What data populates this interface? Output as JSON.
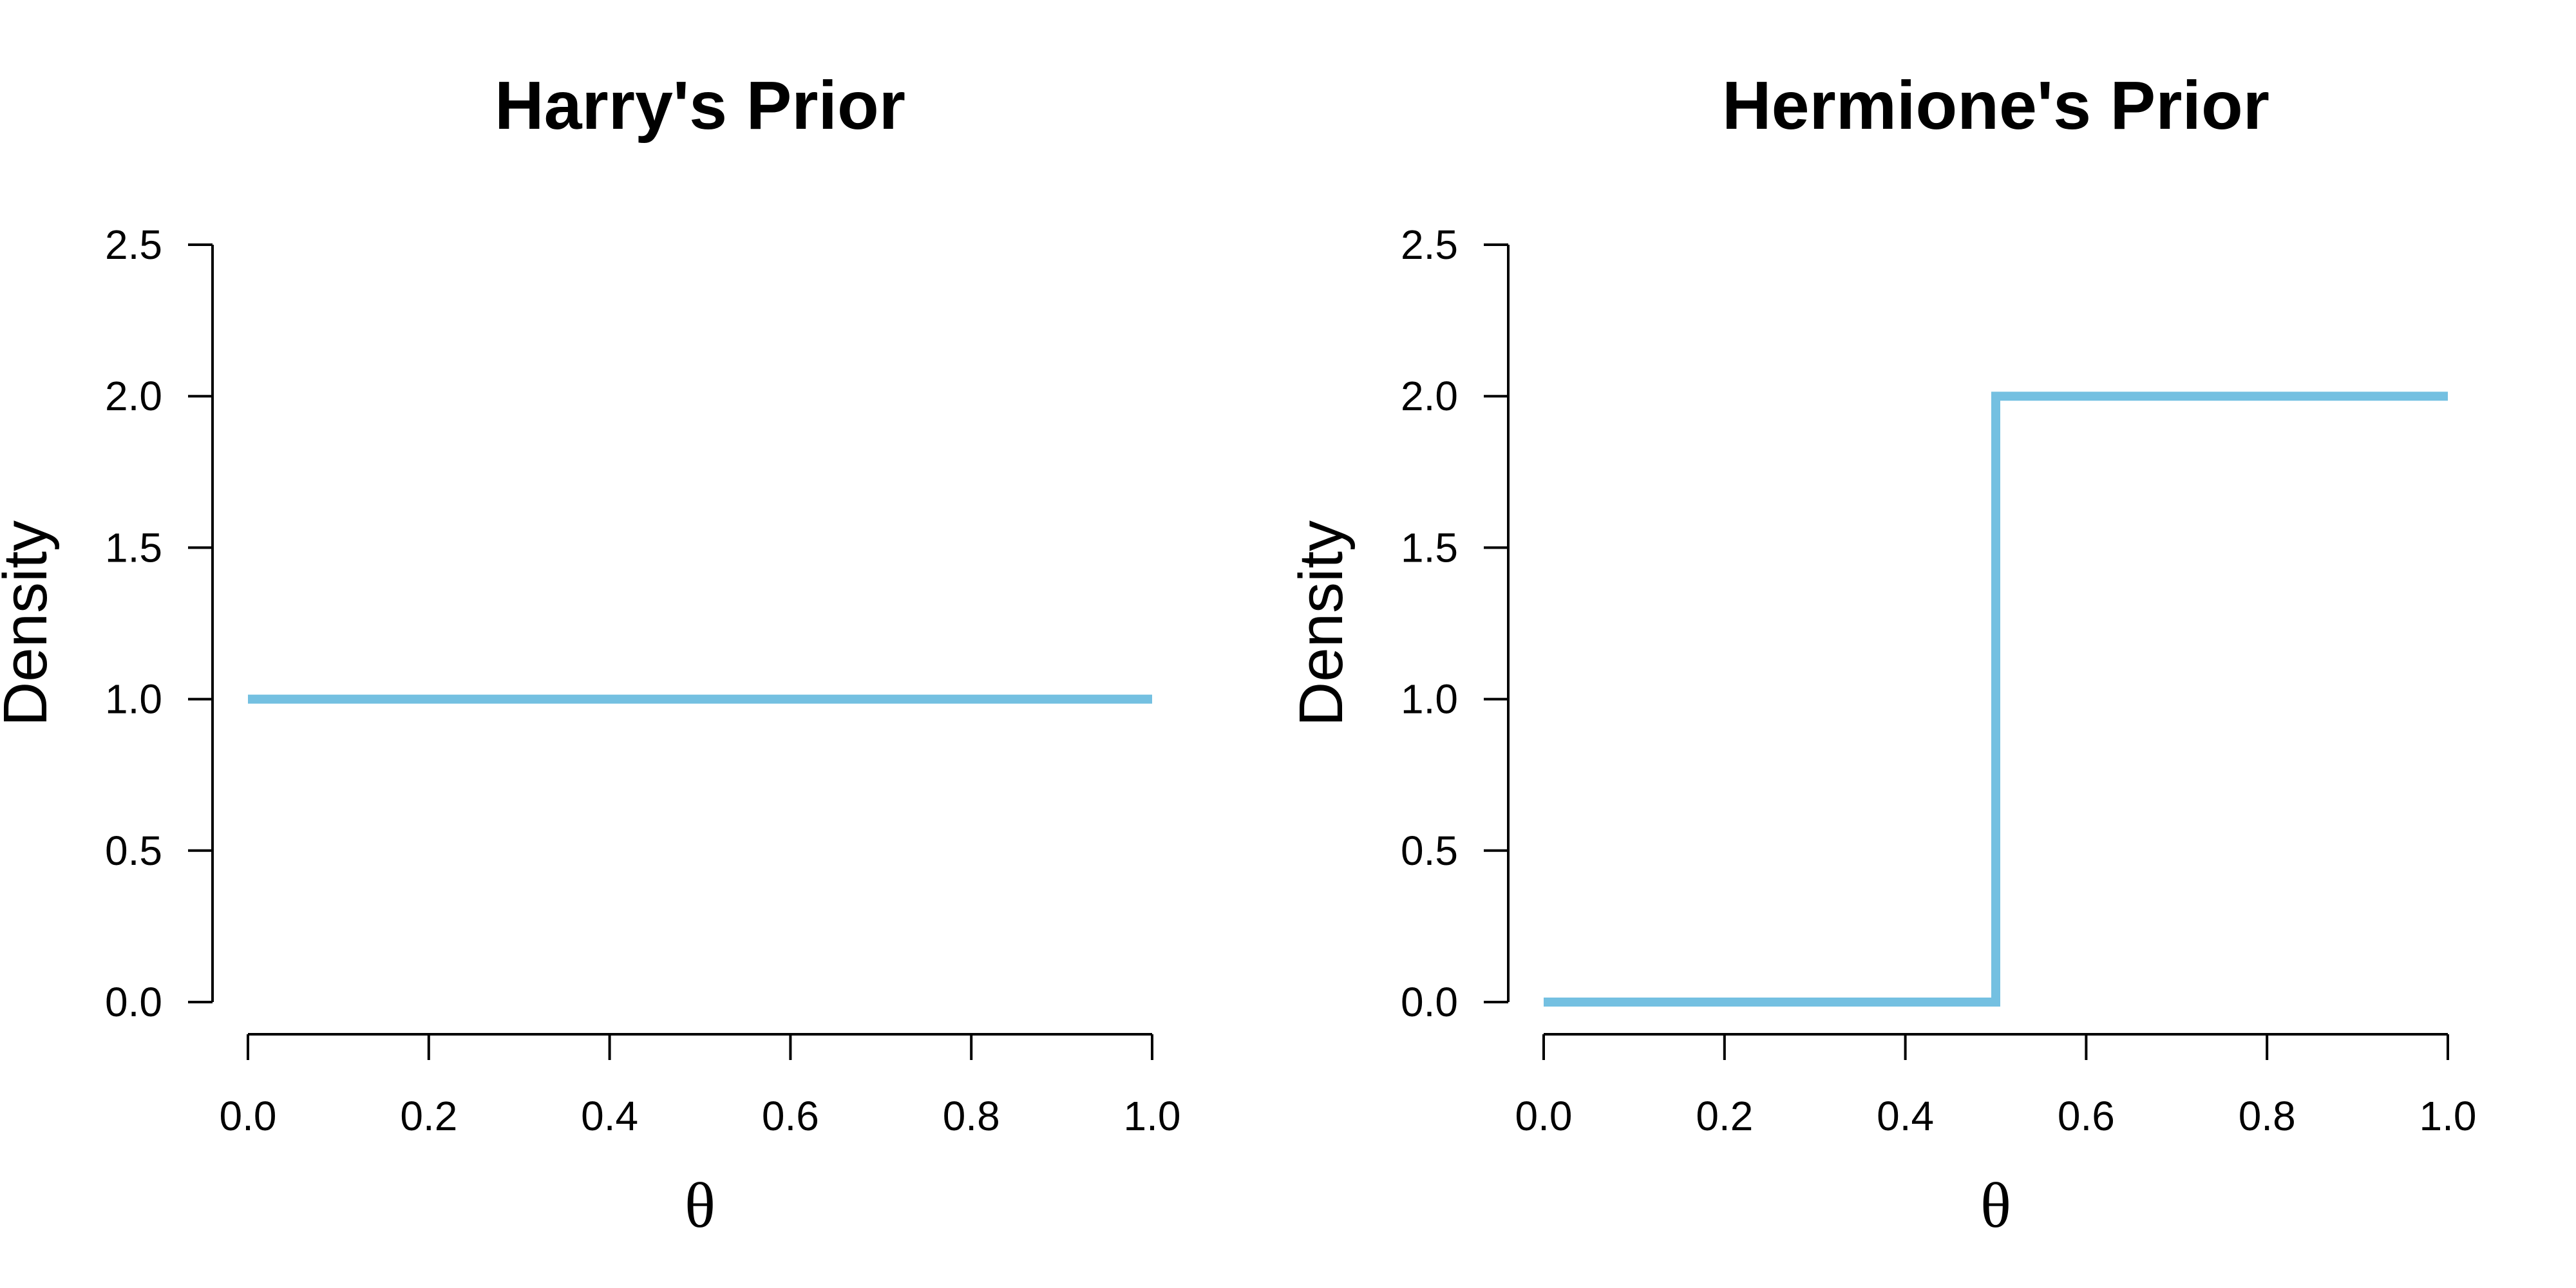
{
  "chart_data": [
    {
      "type": "line",
      "title": "Harry's Prior",
      "xlabel": "θ",
      "ylabel": "Density",
      "xlim": [
        0,
        1
      ],
      "ylim": [
        0,
        2.5
      ],
      "x_ticks": [
        0,
        0.2,
        0.4,
        0.6,
        0.8,
        1.0
      ],
      "x_tick_labels": [
        "0.0",
        "0.2",
        "0.4",
        "0.6",
        "0.8",
        "1.0"
      ],
      "y_ticks": [
        0,
        0.5,
        1.0,
        1.5,
        2.0,
        2.5
      ],
      "y_tick_labels": [
        "0.0",
        "0.5",
        "1.0",
        "1.5",
        "2.0",
        "2.5"
      ],
      "grid": false,
      "series": [
        {
          "x": [
            0,
            1
          ],
          "y": [
            1,
            1
          ],
          "color": "#74c0e1"
        }
      ]
    },
    {
      "type": "line",
      "title": "Hermione's Prior",
      "xlabel": "θ",
      "ylabel": "Density",
      "xlim": [
        0,
        1
      ],
      "ylim": [
        0,
        2.5
      ],
      "x_ticks": [
        0,
        0.2,
        0.4,
        0.6,
        0.8,
        1.0
      ],
      "x_tick_labels": [
        "0.0",
        "0.2",
        "0.4",
        "0.6",
        "0.8",
        "1.0"
      ],
      "y_ticks": [
        0,
        0.5,
        1.0,
        1.5,
        2.0,
        2.5
      ],
      "y_tick_labels": [
        "0.0",
        "0.5",
        "1.0",
        "1.5",
        "2.0",
        "2.5"
      ],
      "grid": false,
      "series": [
        {
          "x": [
            0,
            0.5,
            0.5,
            1
          ],
          "y": [
            0,
            0,
            2,
            2
          ],
          "color": "#74c0e1"
        }
      ]
    }
  ]
}
